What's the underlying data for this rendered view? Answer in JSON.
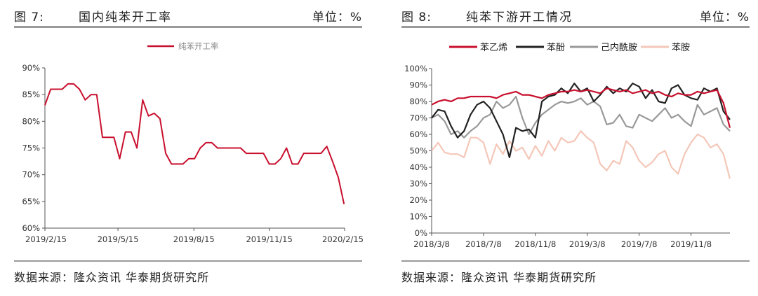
{
  "panels": [
    {
      "fig_no": "图 7:",
      "title": "国内纯苯开工率",
      "unit": "单位：%",
      "source": "数据来源：隆众资讯 华泰期货研究所"
    },
    {
      "fig_no": "图 8:",
      "title": "纯苯下游开工情况",
      "unit": "单位：%",
      "source": "数据来源：隆众资讯 华泰期货研究所"
    }
  ],
  "chart_data": [
    {
      "type": "line",
      "title": "国内纯苯开工率",
      "xlabel": "",
      "ylabel": "",
      "ylim": [
        60,
        90
      ],
      "yticks": [
        "60%",
        "65%",
        "70%",
        "75%",
        "80%",
        "85%",
        "90%"
      ],
      "x_tick_labels": [
        "2019/2/15",
        "2019/5/15",
        "2019/8/15",
        "2019/11/15",
        "2020/2/15"
      ],
      "x_tick_weeks": [
        0,
        12.7,
        25.9,
        39,
        52.1
      ],
      "legend_position": "top-center",
      "grid": false,
      "series": [
        {
          "name": "纯苯开工率",
          "color": "#c8102e",
          "x": [
            0,
            1,
            2,
            3,
            4,
            5,
            6,
            7,
            8,
            9,
            10,
            11,
            12,
            13,
            14,
            15,
            16,
            17,
            18,
            19,
            20,
            21,
            22,
            23,
            24,
            25,
            26,
            27,
            28,
            29,
            30,
            31,
            32,
            33,
            34,
            35,
            36,
            37,
            38,
            39,
            40,
            41,
            42,
            43,
            44,
            45,
            46,
            47,
            48,
            49,
            50,
            51,
            52
          ],
          "values": [
            83,
            86,
            86,
            86,
            87,
            87,
            86,
            84,
            85,
            85,
            77,
            77,
            77,
            73,
            78,
            78,
            75,
            84,
            81,
            81.5,
            80.5,
            74,
            72,
            72,
            72,
            73,
            73,
            75,
            76,
            76,
            75,
            75,
            75,
            75,
            75,
            74,
            74,
            74,
            74,
            72,
            72,
            73,
            75,
            72,
            72,
            74,
            74,
            74,
            74,
            75.3,
            72.5,
            69.5,
            64.5
          ]
        }
      ]
    },
    {
      "type": "line",
      "title": "纯苯下游开工情况",
      "xlabel": "",
      "ylabel": "",
      "ylim": [
        0,
        100
      ],
      "yticks": [
        "0%",
        "10%",
        "20%",
        "30%",
        "40%",
        "50%",
        "60%",
        "70%",
        "80%",
        "90%",
        "100%"
      ],
      "x_tick_labels": [
        "2018/3/8",
        "2018/7/8",
        "2018/11/8",
        "2019/3/8",
        "2019/7/8",
        "2019/11/8"
      ],
      "x_tick_months": [
        0,
        4,
        8,
        12,
        16,
        20
      ],
      "x_max_months": 23,
      "legend_position": "top",
      "grid": false,
      "series": [
        {
          "name": "苯乙烯",
          "color": "#c8102e",
          "x": [
            0,
            0.5,
            1,
            1.5,
            2,
            2.5,
            3,
            3.5,
            4,
            4.5,
            5,
            5.5,
            6,
            6.5,
            7,
            7.5,
            8,
            8.5,
            9,
            9.5,
            10,
            10.5,
            11,
            11.5,
            12,
            12.5,
            13,
            13.5,
            14,
            14.5,
            15,
            15.5,
            16,
            16.5,
            17,
            17.5,
            18,
            18.5,
            19,
            19.5,
            20,
            20.5,
            21,
            21.5,
            22,
            22.5,
            23
          ],
          "values": [
            78,
            80,
            81,
            80,
            82,
            82,
            83,
            83,
            83,
            83,
            82,
            84,
            85,
            86,
            84,
            84,
            83,
            82,
            84,
            85,
            86,
            86,
            87,
            86,
            87,
            86,
            85,
            88,
            87,
            86,
            87,
            85,
            86,
            87,
            85,
            86,
            84,
            83,
            85,
            84,
            84,
            86,
            85,
            86,
            87,
            79,
            64
          ]
        },
        {
          "name": "苯酚",
          "color": "#222222",
          "x": [
            0,
            0.5,
            1,
            1.5,
            2,
            2.5,
            3,
            3.5,
            4,
            4.5,
            5,
            5.5,
            6,
            6.5,
            7,
            7.5,
            8,
            8.5,
            9,
            9.5,
            10,
            10.5,
            11,
            11.5,
            12,
            12.5,
            13,
            13.5,
            14,
            14.5,
            15,
            15.5,
            16,
            16.5,
            17,
            17.5,
            18,
            18.5,
            19,
            19.5,
            20,
            20.5,
            21,
            21.5,
            22,
            22.5,
            23
          ],
          "values": [
            70,
            75,
            74,
            65,
            58,
            62,
            72,
            78,
            80,
            76,
            68,
            60,
            46,
            64,
            62,
            63,
            58,
            80,
            83,
            84,
            88,
            85,
            91,
            86,
            88,
            80,
            84,
            89,
            85,
            88,
            86,
            91,
            89,
            82,
            87,
            80,
            79,
            88,
            90,
            84,
            82,
            81,
            88,
            86,
            88,
            74,
            69
          ]
        },
        {
          "name": "己内酰胺",
          "color": "#999999",
          "x": [
            0,
            0.5,
            1,
            1.5,
            2,
            2.5,
            3,
            3.5,
            4,
            4.5,
            5,
            5.5,
            6,
            6.5,
            7,
            7.5,
            8,
            8.5,
            9,
            9.5,
            10,
            10.5,
            11,
            11.5,
            12,
            12.5,
            13,
            13.5,
            14,
            14.5,
            15,
            15.5,
            16,
            16.5,
            17,
            17.5,
            18,
            18.5,
            19,
            19.5,
            20,
            20.5,
            21,
            21.5,
            22,
            22.5,
            23
          ],
          "values": [
            70,
            72,
            68,
            60,
            62,
            58,
            62,
            65,
            70,
            72,
            80,
            76,
            78,
            83,
            70,
            60,
            67,
            72,
            75,
            78,
            80,
            79,
            80,
            82,
            78,
            80,
            77,
            66,
            67,
            72,
            65,
            64,
            72,
            70,
            68,
            72,
            76,
            70,
            72,
            68,
            65,
            78,
            72,
            74,
            76,
            66,
            62
          ]
        },
        {
          "name": "苯胺",
          "color": "#f4c7b8",
          "x": [
            0,
            0.5,
            1,
            1.5,
            2,
            2.5,
            3,
            3.5,
            4,
            4.5,
            5,
            5.5,
            6,
            6.5,
            7,
            7.5,
            8,
            8.5,
            9,
            9.5,
            10,
            10.5,
            11,
            11.5,
            12,
            12.5,
            13,
            13.5,
            14,
            14.5,
            15,
            15.5,
            16,
            16.5,
            17,
            17.5,
            18,
            18.5,
            19,
            19.5,
            20,
            20.5,
            21,
            21.5,
            22,
            22.5,
            23
          ],
          "values": [
            50,
            55,
            49,
            48,
            48,
            46,
            58,
            58,
            55,
            42,
            54,
            48,
            56,
            50,
            52,
            45,
            53,
            47,
            56,
            50,
            58,
            55,
            56,
            62,
            58,
            55,
            42,
            38,
            44,
            42,
            56,
            52,
            44,
            40,
            43,
            48,
            50,
            40,
            36,
            48,
            55,
            60,
            58,
            52,
            54,
            48,
            33
          ]
        }
      ]
    }
  ]
}
